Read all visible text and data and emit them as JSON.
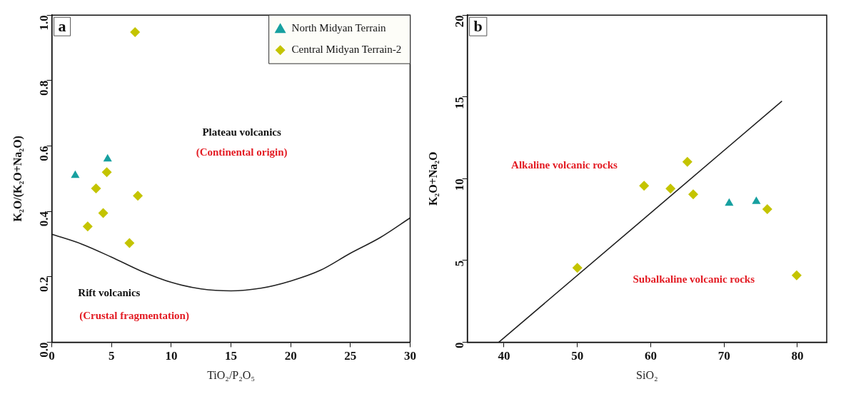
{
  "chart_data": [
    {
      "type": "scatter",
      "title": "a",
      "xlabel": "TiO₂/P₂O₅",
      "ylabel": "K₂O/(K₂O+Na₂O)",
      "xlim": [
        0,
        30
      ],
      "xticks": [
        0,
        5,
        10,
        15,
        20,
        25,
        30
      ],
      "ylim": [
        0,
        1
      ],
      "yticks": [
        {
          "value": 0,
          "label": "0.0"
        },
        0.2,
        0.4,
        0.6,
        0.8,
        {
          "value": 1,
          "label": "1.0"
        }
      ],
      "grid": false,
      "legend": "top right",
      "annotations": [
        "Plateau volcanics",
        "(Continental origin)",
        "Rift volcanics",
        "(Crustal fragmentation)"
      ],
      "series": [
        {
          "name": "North Midyan Terrain",
          "color": "#17a0a0",
          "marker": "triangle",
          "x": [
            1.96,
            4.67
          ],
          "values": [
            0.51,
            0.56
          ]
        },
        {
          "name": "Central Midyan Terrain-2",
          "color": "#c4c400",
          "marker": "diamond",
          "x": [
            6.97,
            4.6,
            3.7,
            7.2,
            4.3,
            3.0,
            6.5
          ],
          "values": [
            0.948,
            0.52,
            0.47,
            0.448,
            0.395,
            0.354,
            0.303
          ]
        },
        {
          "type": "line",
          "color": "#222222",
          "marker": "none",
          "x": [
            0,
            2.5,
            5,
            7.5,
            10,
            12.5,
            15,
            17.5,
            20,
            22.5,
            25,
            27.5,
            30
          ],
          "values": [
            0.33,
            0.3,
            0.26,
            0.217,
            0.183,
            0.163,
            0.157,
            0.165,
            0.187,
            0.22,
            0.272,
            0.32,
            0.38
          ]
        }
      ]
    },
    {
      "type": "scatter",
      "title": "b",
      "xlabel": "SiO₂",
      "ylabel": "K₂O+Na₂O",
      "xlim": [
        35,
        84
      ],
      "xticks": [
        40,
        50,
        60,
        70,
        80
      ],
      "ylim": [
        0,
        20
      ],
      "yticks": [
        0,
        5,
        10,
        15,
        20
      ],
      "grid": false,
      "annotations": [
        "Alkaline volcanic rocks",
        "Subalkaline volcanic rocks"
      ],
      "series": [
        {
          "color": "#17a0a0",
          "marker": "triangle",
          "x": [
            70.7,
            74.4
          ],
          "values": [
            8.5,
            8.6
          ]
        },
        {
          "color": "#c4c400",
          "marker": "diamond",
          "x": [
            50.0,
            59.1,
            62.7,
            65.0,
            65.8,
            75.9,
            79.9
          ],
          "values": [
            4.55,
            9.57,
            9.39,
            11.03,
            9.04,
            8.14,
            4.09
          ]
        },
        {
          "type": "line",
          "color": "#222222",
          "marker": "none",
          "x": [
            39.3,
            77.9
          ],
          "values": [
            0,
            14.74
          ]
        }
      ]
    }
  ]
}
